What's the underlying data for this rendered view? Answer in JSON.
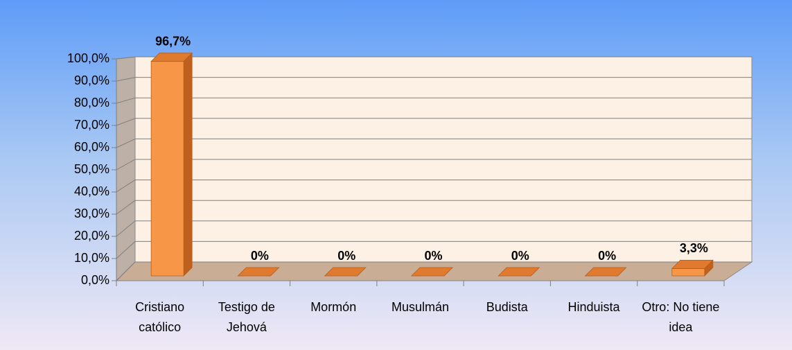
{
  "chart_data": {
    "type": "bar3d",
    "categories": [
      "Cristiano católico",
      "Testigo de Jehová",
      "Mormón",
      "Musulmán",
      "Budista",
      "Hinduista",
      "Otro: No tiene idea"
    ],
    "values": [
      96.7,
      0,
      0,
      0,
      0,
      0,
      3.3
    ],
    "value_labels": [
      "96,7%",
      "0%",
      "0%",
      "0%",
      "0%",
      "0%",
      "3,3%"
    ],
    "color": "#f79646",
    "ylim": [
      0,
      100
    ],
    "yticks": [
      {
        "value": 0,
        "label": "0,0%"
      },
      {
        "value": 10,
        "label": "10,0%"
      },
      {
        "value": 20,
        "label": "20,0%"
      },
      {
        "value": 30,
        "label": "30,0%"
      },
      {
        "value": 40,
        "label": "40,0%"
      },
      {
        "value": 50,
        "label": "50,0%"
      },
      {
        "value": 60,
        "label": "60,0%"
      },
      {
        "value": 70,
        "label": "70,0%"
      },
      {
        "value": 80,
        "label": "80,0%"
      },
      {
        "value": 90,
        "label": "90,0%"
      },
      {
        "value": 100,
        "label": "100,0%"
      }
    ],
    "grid": true
  }
}
